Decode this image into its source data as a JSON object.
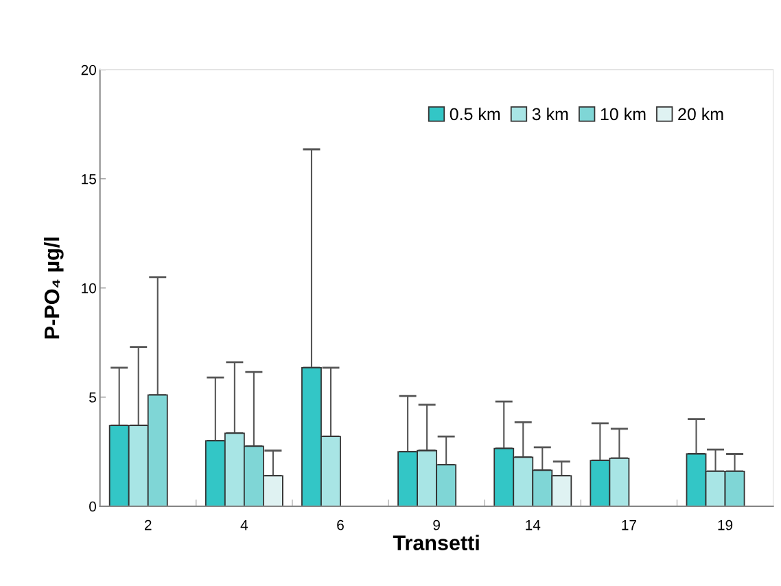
{
  "chart_data": {
    "type": "bar",
    "xlabel": "Transetti",
    "ylabel": "P-PO₄ µg/l",
    "categories": [
      "2",
      "4",
      "6",
      "9",
      "14",
      "17",
      "19"
    ],
    "series": [
      {
        "name": "0.5 km",
        "color": "#33c6c6",
        "values": [
          3.7,
          3.0,
          6.35,
          2.5,
          2.65,
          2.1,
          2.4
        ],
        "errors": [
          [
            3.7,
            6.35
          ],
          [
            3.0,
            5.9
          ],
          [
            6.35,
            16.35
          ],
          [
            2.5,
            5.05
          ],
          [
            2.65,
            4.8
          ],
          [
            2.1,
            3.8
          ],
          [
            2.4,
            4.0
          ]
        ]
      },
      {
        "name": "3 km",
        "color": "#a8e5e5",
        "values": [
          3.7,
          3.35,
          3.2,
          2.55,
          2.25,
          2.2,
          1.6
        ],
        "errors": [
          [
            3.7,
            7.3
          ],
          [
            3.35,
            6.6
          ],
          [
            3.2,
            6.35
          ],
          [
            2.55,
            4.65
          ],
          [
            2.25,
            3.85
          ],
          [
            2.2,
            3.55
          ],
          [
            1.6,
            2.6
          ]
        ]
      },
      {
        "name": "10 km",
        "color": "#7fd6d6",
        "values": [
          5.1,
          2.75,
          null,
          1.9,
          1.65,
          null,
          1.6
        ],
        "errors": [
          [
            5.1,
            10.5
          ],
          [
            2.75,
            6.15
          ],
          null,
          [
            1.9,
            3.2
          ],
          [
            1.65,
            2.7
          ],
          null,
          [
            1.6,
            2.4
          ]
        ]
      },
      {
        "name": "20 km",
        "color": "#dff2f2",
        "values": [
          null,
          1.4,
          null,
          null,
          1.4,
          null,
          null
        ],
        "errors": [
          null,
          [
            1.4,
            2.55
          ],
          null,
          null,
          [
            1.4,
            2.05
          ],
          null,
          null
        ]
      }
    ],
    "ylim": [
      0,
      20
    ],
    "yticks": [
      0,
      5,
      10,
      15,
      20
    ],
    "grid": false,
    "legend": "top right"
  }
}
